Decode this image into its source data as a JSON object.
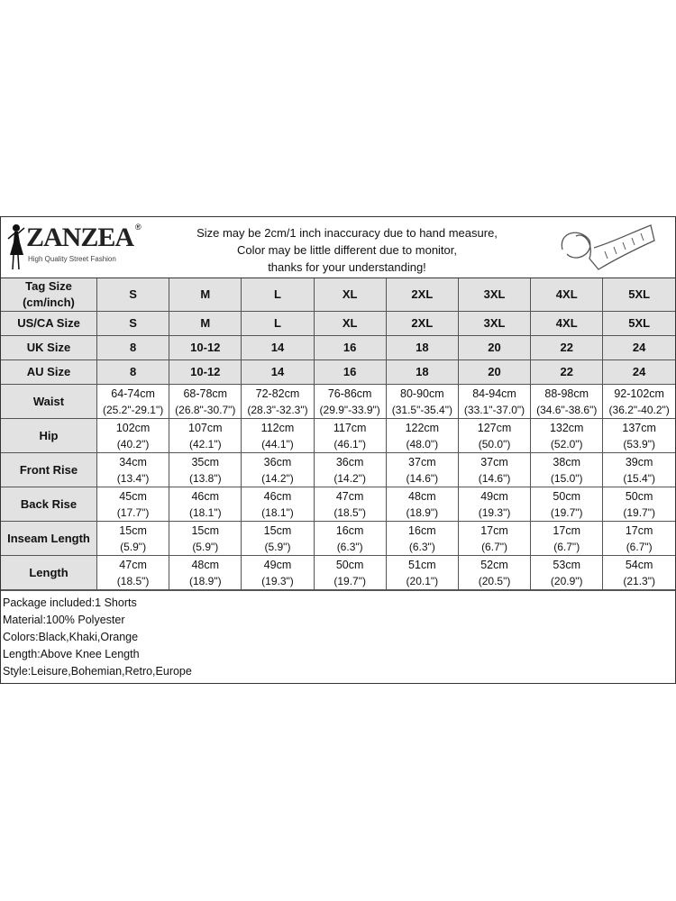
{
  "logo": {
    "brand": "ZANZEA",
    "tagline": "High Quality Street Fashion",
    "reg": "®"
  },
  "notice": [
    "Size may be 2cm/1 inch inaccuracy due to hand measure,",
    "Color may be little different due to monitor,",
    "thanks for your understanding!"
  ],
  "size_rows": [
    {
      "label": "Tag Size (cm/inch)",
      "values": [
        "S",
        "M",
        "L",
        "XL",
        "2XL",
        "3XL",
        "4XL",
        "5XL"
      ]
    },
    {
      "label": "US/CA Size",
      "values": [
        "S",
        "M",
        "L",
        "XL",
        "2XL",
        "3XL",
        "4XL",
        "5XL"
      ]
    },
    {
      "label": "UK Size",
      "values": [
        "8",
        "10-12",
        "14",
        "16",
        "18",
        "20",
        "22",
        "24"
      ]
    },
    {
      "label": "AU Size",
      "values": [
        "8",
        "10-12",
        "14",
        "16",
        "18",
        "20",
        "22",
        "24"
      ]
    }
  ],
  "measure_rows": [
    {
      "label": "Waist",
      "cm": [
        "64-74cm",
        "68-78cm",
        "72-82cm",
        "76-86cm",
        "80-90cm",
        "84-94cm",
        "88-98cm",
        "92-102cm"
      ],
      "inch": [
        "(25.2\"-29.1\")",
        "(26.8\"-30.7\")",
        "(28.3\"-32.3\")",
        "(29.9\"-33.9\")",
        "(31.5\"-35.4\")",
        "(33.1\"-37.0\")",
        "(34.6\"-38.6\")",
        "(36.2\"-40.2\")"
      ]
    },
    {
      "label": "Hip",
      "cm": [
        "102cm",
        "107cm",
        "112cm",
        "117cm",
        "122cm",
        "127cm",
        "132cm",
        "137cm"
      ],
      "inch": [
        "(40.2\")",
        "(42.1\")",
        "(44.1\")",
        "(46.1\")",
        "(48.0\")",
        "(50.0\")",
        "(52.0\")",
        "(53.9\")"
      ]
    },
    {
      "label": "Front Rise",
      "cm": [
        "34cm",
        "35cm",
        "36cm",
        "36cm",
        "37cm",
        "37cm",
        "38cm",
        "39cm"
      ],
      "inch": [
        "(13.4\")",
        "(13.8\")",
        "(14.2\")",
        "(14.2\")",
        "(14.6\")",
        "(14.6\")",
        "(15.0\")",
        "(15.4\")"
      ]
    },
    {
      "label": "Back Rise",
      "cm": [
        "45cm",
        "46cm",
        "46cm",
        "47cm",
        "48cm",
        "49cm",
        "50cm",
        "50cm"
      ],
      "inch": [
        "(17.7\")",
        "(18.1\")",
        "(18.1\")",
        "(18.5\")",
        "(18.9\")",
        "(19.3\")",
        "(19.7\")",
        "(19.7\")"
      ]
    },
    {
      "label": "Inseam Length",
      "cm": [
        "15cm",
        "15cm",
        "15cm",
        "16cm",
        "16cm",
        "17cm",
        "17cm",
        "17cm"
      ],
      "inch": [
        "(5.9\")",
        "(5.9\")",
        "(5.9\")",
        "(6.3\")",
        "(6.3\")",
        "(6.7\")",
        "(6.7\")",
        "(6.7\")"
      ]
    },
    {
      "label": "Length",
      "cm": [
        "47cm",
        "48cm",
        "49cm",
        "50cm",
        "51cm",
        "52cm",
        "53cm",
        "54cm"
      ],
      "inch": [
        "(18.5\")",
        "(18.9\")",
        "(19.3\")",
        "(19.7\")",
        "(20.1\")",
        "(20.5\")",
        "(20.9\")",
        "(21.3\")"
      ]
    }
  ],
  "notes": [
    "Package included:1 Shorts",
    "Material:100% Polyester",
    "Colors:Black,Khaki,Orange",
    "Length:Above Knee Length",
    "Style:Leisure,Bohemian,Retro,Europe"
  ]
}
